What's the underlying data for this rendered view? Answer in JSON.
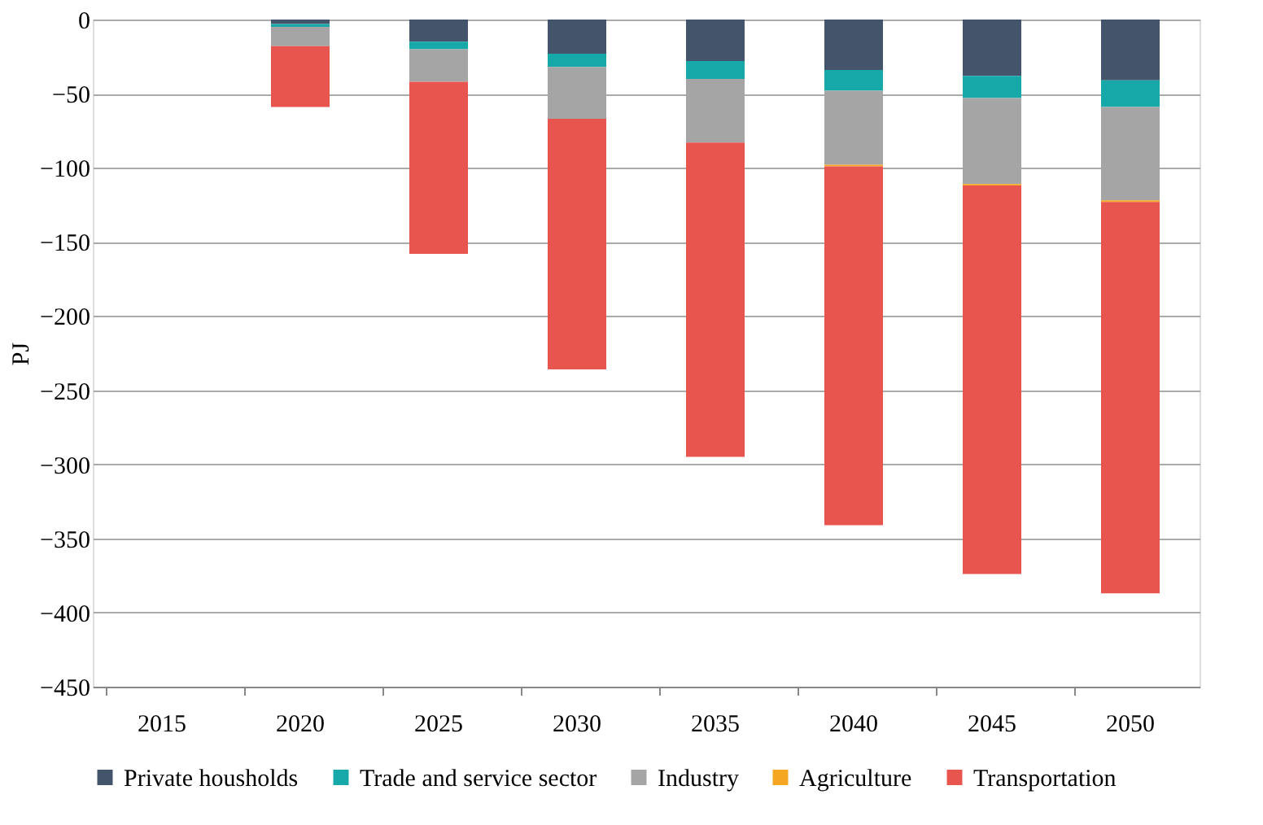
{
  "chart_data": {
    "type": "bar",
    "stacked": true,
    "ylabel": "PJ",
    "categories": [
      "2015",
      "2020",
      "2025",
      "2030",
      "2035",
      "2040",
      "2045",
      "2050"
    ],
    "series": [
      {
        "name": "Private housholds",
        "color": "#44546a",
        "values": [
          0,
          -3,
          -15,
          -23,
          -28,
          -34,
          -38,
          -41
        ]
      },
      {
        "name": "Trade and service sector",
        "color": "#17a9aa",
        "values": [
          0,
          -2,
          -5,
          -9,
          -12,
          -14,
          -15,
          -18
        ]
      },
      {
        "name": "Industry",
        "color": "#a5a5a5",
        "values": [
          0,
          -13,
          -22,
          -35,
          -43,
          -50,
          -58,
          -63
        ]
      },
      {
        "name": "Agriculture",
        "color": "#f5a623",
        "values": [
          0,
          0,
          0,
          0,
          0,
          -1,
          -1,
          -1
        ]
      },
      {
        "name": "Transportation",
        "color": "#e8554e",
        "values": [
          0,
          -41,
          -116,
          -169,
          -212,
          -242,
          -262,
          -264
        ]
      }
    ],
    "ylim": [
      -450,
      0
    ],
    "yticks": [
      0,
      -50,
      -100,
      -150,
      -200,
      -250,
      -300,
      -350,
      -400,
      -450
    ],
    "grid": "y",
    "legend": "bottom"
  }
}
